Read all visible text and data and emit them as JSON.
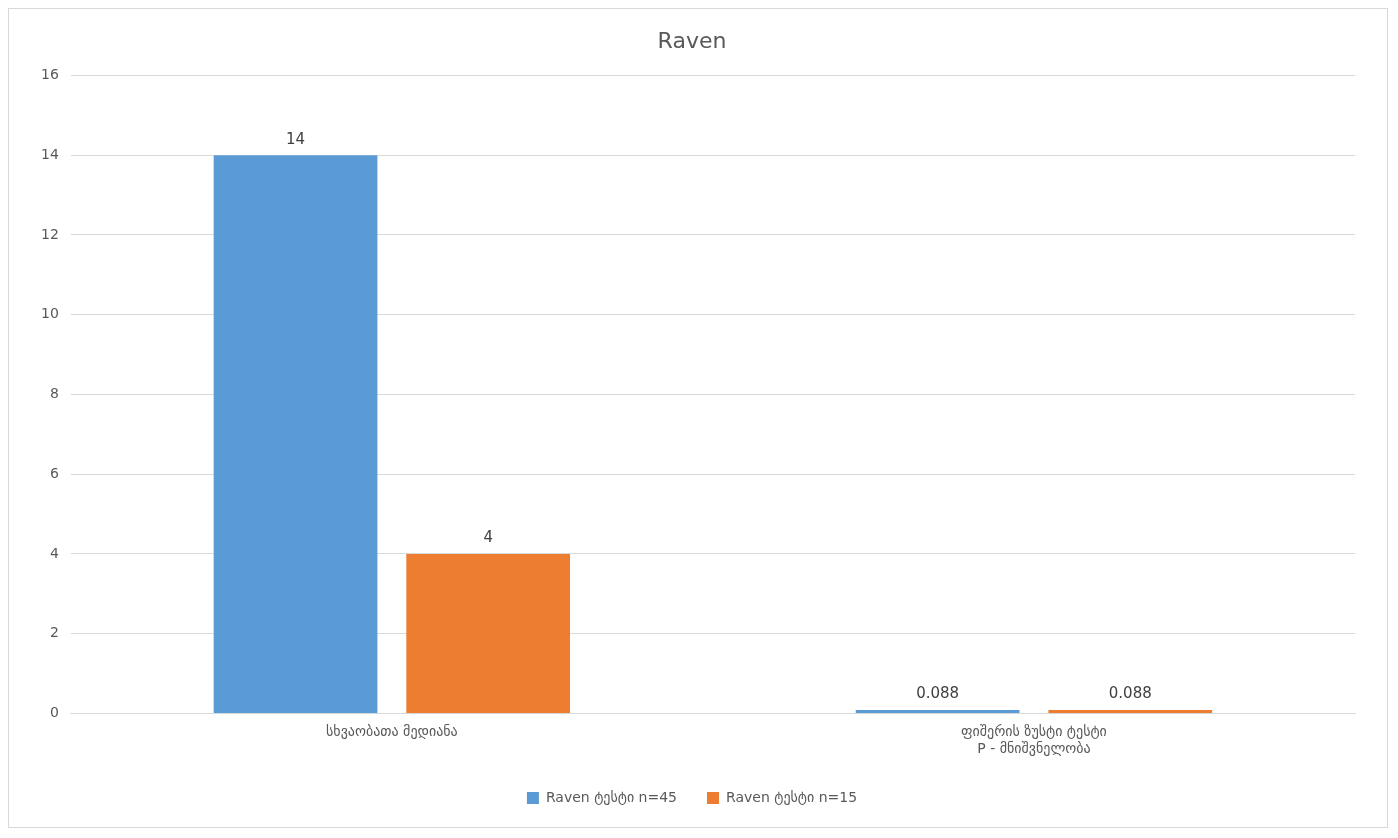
{
  "chart_data": {
    "type": "bar",
    "title": "Raven",
    "categories": [
      "სხვაობათა მედიანა",
      "ფიშერის ზუსტი ტესტი\nP - მნიშვნელობა"
    ],
    "series": [
      {
        "name": "Raven ტესტი n=45",
        "color": "#5b9bd5",
        "values": [
          14,
          0.088
        ]
      },
      {
        "name": "Raven ტესტი n=15",
        "color": "#ed7d31",
        "values": [
          4,
          0.088
        ]
      }
    ],
    "ylim": [
      0,
      16
    ],
    "yticks": [
      0,
      2,
      4,
      6,
      8,
      10,
      12,
      14,
      16
    ],
    "grid": "y",
    "legend": "bottom",
    "data_labels": true
  }
}
